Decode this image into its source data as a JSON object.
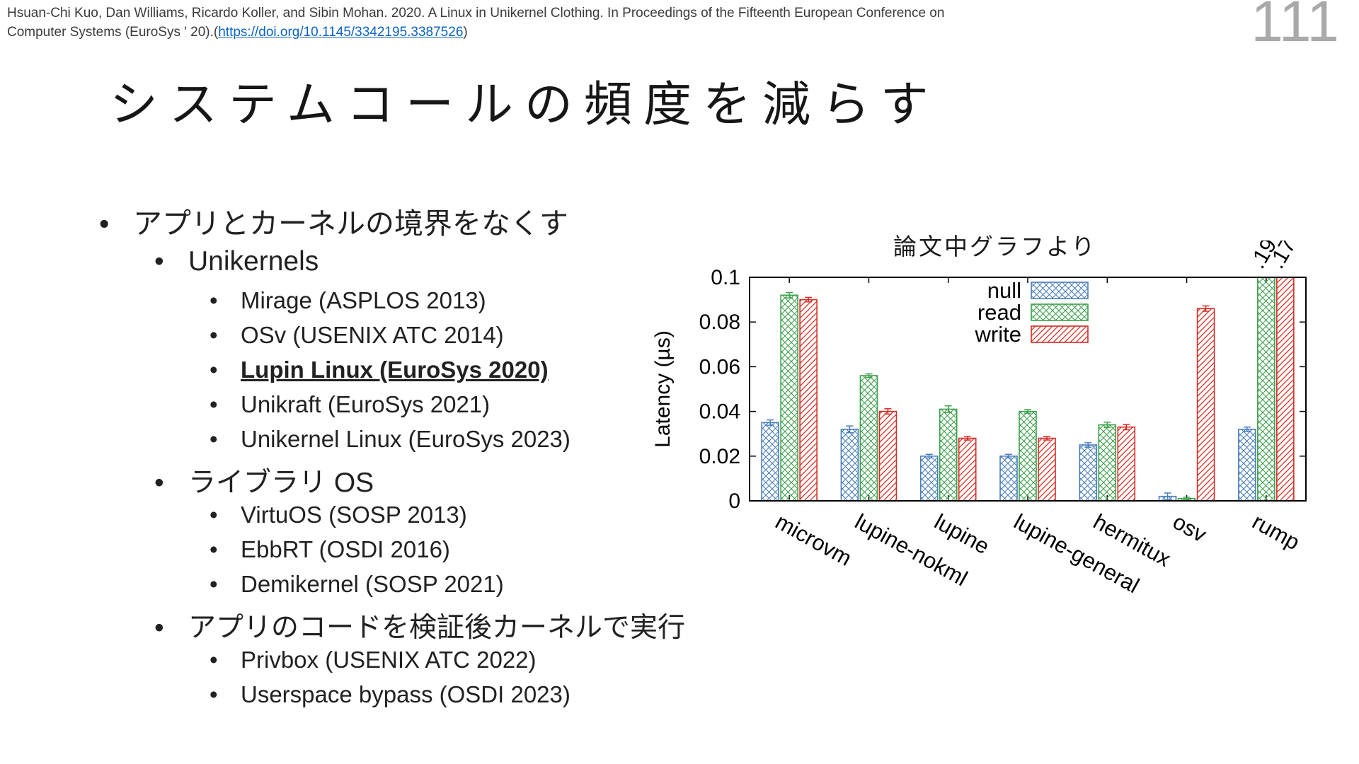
{
  "citation": {
    "line1": "Hsuan-Chi Kuo, Dan Williams, Ricardo Koller, and Sibin Mohan. 2020. A Linux in Unikernel Clothing. In Proceedings of the Fifteenth European Conference on",
    "line2_prefix": "Computer Systems (EuroSys ' 20).(",
    "link": "https://doi.org/10.1145/3342195.3387526",
    "line2_suffix": ")"
  },
  "page_number": "111",
  "title": "システムコールの頻度を減らす",
  "list": {
    "items": [
      {
        "level": 1,
        "text": "アプリとカーネルの境界をなくす"
      },
      {
        "level": 2,
        "text": "Unikernels"
      },
      {
        "level": 3,
        "text": "Mirage (ASPLOS 2013)"
      },
      {
        "level": 3,
        "text": "OSv (USENIX ATC 2014)"
      },
      {
        "level": 3,
        "text": "Lupin Linux (EuroSys 2020)",
        "emphasis": true
      },
      {
        "level": 3,
        "text": "Unikraft (EuroSys 2021)"
      },
      {
        "level": 3,
        "text": "Unikernel Linux (EuroSys 2023)"
      },
      {
        "level": 2,
        "text": "ライブラリ OS"
      },
      {
        "level": 3,
        "text": "VirtuOS (SOSP 2013)"
      },
      {
        "level": 3,
        "text": "EbbRT (OSDI 2016)"
      },
      {
        "level": 3,
        "text": "Demikernel (SOSP 2021)"
      },
      {
        "level": 2,
        "text": "アプリのコードを検証後カーネルで実行"
      },
      {
        "level": 3,
        "text": "Privbox (USENIX ATC 2022)"
      },
      {
        "level": 3,
        "text": "Userspace bypass (OSDI 2023)"
      }
    ]
  },
  "chart_data": {
    "type": "bar",
    "title": "論文中グラフより",
    "ylabel": "Latency (µs)",
    "ylim": [
      0,
      0.1
    ],
    "yticks": [
      0,
      0.02,
      0.04,
      0.06,
      0.08,
      0.1
    ],
    "grid": false,
    "legend_position": "top-center-inside",
    "categories": [
      "microvm",
      "lupine-nokml",
      "lupine",
      "lupine-general",
      "hermitux",
      "osv",
      "rump"
    ],
    "series": [
      {
        "name": "null",
        "color": "#4a7ebb",
        "pattern": "pat-null",
        "hatch": "crosshatch",
        "values": [
          0.035,
          0.032,
          0.02,
          0.02,
          0.025,
          0.002,
          0.032
        ],
        "errors": [
          0.0012,
          0.0015,
          0.0008,
          0.0008,
          0.001,
          0.0015,
          0.001
        ]
      },
      {
        "name": "read",
        "color": "#3da04b",
        "pattern": "pat-read",
        "hatch": "crosshatch",
        "values": [
          0.092,
          0.056,
          0.041,
          0.04,
          0.034,
          0.001,
          0.19
        ],
        "errors": [
          0.0012,
          0.0008,
          0.0015,
          0.0008,
          0.0012,
          0.0006,
          0
        ]
      },
      {
        "name": "write",
        "color": "#d62c23",
        "pattern": "pat-write",
        "hatch": "diagonal",
        "values": [
          0.09,
          0.04,
          0.028,
          0.028,
          0.033,
          0.086,
          0.17
        ],
        "errors": [
          0.001,
          0.0012,
          0.0008,
          0.0008,
          0.0012,
          0.0012,
          0
        ]
      }
    ],
    "overflow_labels": [
      ".19",
      ".17"
    ]
  }
}
